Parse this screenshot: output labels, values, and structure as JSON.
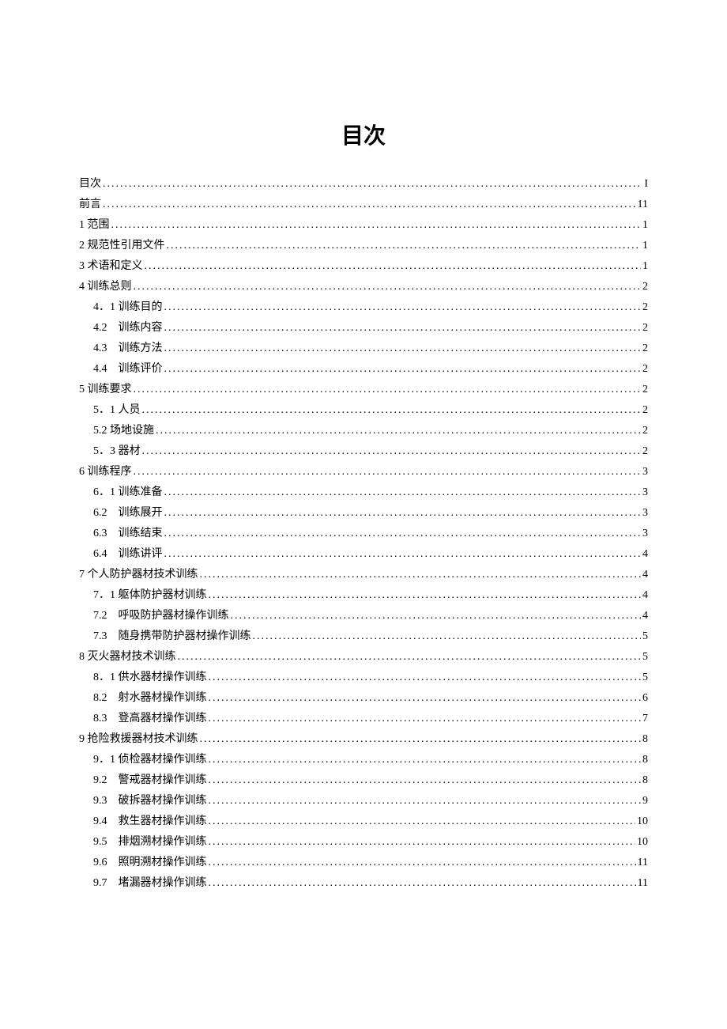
{
  "title": "目次",
  "entries": [
    {
      "level": 1,
      "label": "目次",
      "page": "I"
    },
    {
      "level": 1,
      "label": "前言",
      "page": "11"
    },
    {
      "level": 1,
      "label": "1 范围",
      "page": "1"
    },
    {
      "level": 1,
      "label": "2 规范性引用文件",
      "page": "1"
    },
    {
      "level": 1,
      "label": "3 术语和定义",
      "page": "1"
    },
    {
      "level": 1,
      "label": "4 训练总则",
      "page": "2"
    },
    {
      "level": 2,
      "label": "4．1 训练目的",
      "page": "2"
    },
    {
      "level": 2,
      "label": "4.2　训练内容",
      "page": "2"
    },
    {
      "level": 2,
      "label": "4.3　训练方法",
      "page": "2"
    },
    {
      "level": 2,
      "label": "4.4　训练评价",
      "page": "2"
    },
    {
      "level": 1,
      "label": "5 训练要求",
      "page": "2"
    },
    {
      "level": 2,
      "label": "5．1 人员",
      "page": "2"
    },
    {
      "level": 2,
      "label": "5.2 场地设施",
      "page": "2"
    },
    {
      "level": 2,
      "label": "5．3 器材",
      "page": "2"
    },
    {
      "level": 1,
      "label": "6 训练程序",
      "page": "3"
    },
    {
      "level": 2,
      "label": "6．1 训练准备",
      "page": "3"
    },
    {
      "level": 2,
      "label": "6.2　训练展开",
      "page": "3"
    },
    {
      "level": 2,
      "label": "6.3　训练结束",
      "page": "3"
    },
    {
      "level": 2,
      "label": "6.4　训练讲评",
      "page": "4"
    },
    {
      "level": 1,
      "label": "7 个人防护器材技术训练",
      "page": "4"
    },
    {
      "level": 2,
      "label": "7．1 躯体防护器材训练",
      "page": "4"
    },
    {
      "level": 2,
      "label": "7.2　呼吸防护器材操作训练",
      "page": "4"
    },
    {
      "level": 2,
      "label": "7.3　随身携带防护器材操作训练",
      "page": "5"
    },
    {
      "level": 1,
      "label": "8 灭火器材技术训练",
      "page": "5"
    },
    {
      "level": 2,
      "label": "8．1 供水器材操作训练",
      "page": "5"
    },
    {
      "level": 2,
      "label": "8.2　射水器材操作训练",
      "page": "6"
    },
    {
      "level": 2,
      "label": "8.3　登高器材操作训练",
      "page": "7"
    },
    {
      "level": 1,
      "label": "9 抢险救援器材技术训练",
      "page": "8"
    },
    {
      "level": 2,
      "label": "9．1 侦检器材操作训练",
      "page": "8"
    },
    {
      "level": 2,
      "label": "9.2　警戒器材操作训练",
      "page": "8"
    },
    {
      "level": 2,
      "label": "9.3　破拆器材操作训练",
      "page": "9"
    },
    {
      "level": 2,
      "label": "9.4　救生器材操作训练",
      "page": "10"
    },
    {
      "level": 2,
      "label": "9.5　排烟溯材操作训练",
      "page": "10"
    },
    {
      "level": 2,
      "label": "9.6　照明溯材操作训练",
      "page": "11"
    },
    {
      "level": 2,
      "label": "9.7　堵漏器材操作训练",
      "page": "11"
    }
  ]
}
